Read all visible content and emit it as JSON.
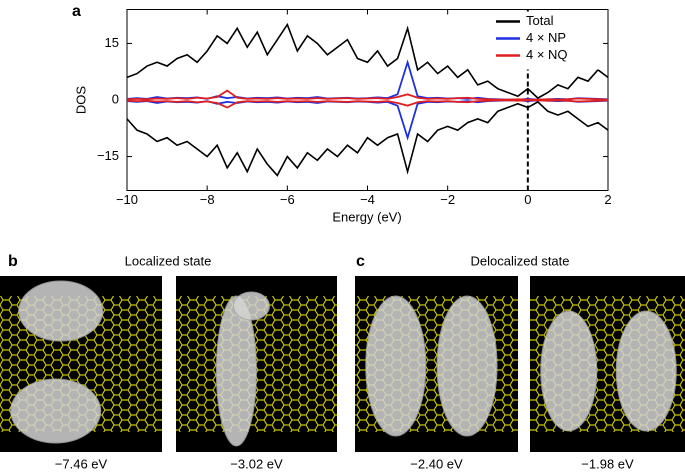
{
  "chart_data": {
    "type": "line",
    "panel_label": "a",
    "xlabel": "Energy (eV)",
    "ylabel": "DOS",
    "x": [
      -10,
      -9.75,
      -9.5,
      -9.25,
      -9,
      -8.75,
      -8.5,
      -8.25,
      -8,
      -7.75,
      -7.5,
      -7.25,
      -7,
      -6.75,
      -6.5,
      -6.25,
      -6,
      -5.75,
      -5.5,
      -5.25,
      -5,
      -4.75,
      -4.5,
      -4.25,
      -4,
      -3.75,
      -3.5,
      -3.25,
      -3,
      -2.75,
      -2.5,
      -2.25,
      -2,
      -1.75,
      -1.5,
      -1.25,
      -1,
      -0.75,
      -0.5,
      -0.25,
      0,
      0.25,
      0.5,
      0.75,
      1,
      1.25,
      1.5,
      1.75,
      2
    ],
    "series": [
      {
        "name": "Total",
        "color": "#000000",
        "values": [
          6,
          7,
          9,
          10,
          9,
          11,
          12,
          10,
          13,
          17,
          15,
          19,
          14,
          18,
          12,
          16,
          20,
          13,
          17,
          15,
          12,
          14,
          16,
          11,
          10,
          13,
          9,
          11,
          19,
          8,
          10,
          7,
          9,
          6,
          8,
          4,
          5,
          3,
          2,
          1,
          3,
          0.5,
          2,
          4,
          3,
          6,
          5,
          8,
          6
        ],
        "values_down": [
          -5,
          -8,
          -9,
          -11,
          -10,
          -12,
          -11,
          -13,
          -15,
          -12,
          -18,
          -14,
          -19,
          -13,
          -17,
          -20,
          -15,
          -18,
          -14,
          -16,
          -13,
          -15,
          -12,
          -14,
          -10,
          -12,
          -10,
          -9,
          -19,
          -9,
          -11,
          -8,
          -7,
          -8,
          -6,
          -5,
          -6,
          -3,
          -2,
          -1,
          -2,
          -0.5,
          -3,
          -4,
          -3,
          -5,
          -7,
          -6,
          -8
        ]
      },
      {
        "name": "4 × NP",
        "color": "#1f2fe0",
        "values": [
          0.3,
          0.5,
          0.3,
          0.8,
          0.4,
          0.6,
          0.5,
          0.7,
          0.3,
          1,
          0.5,
          0.8,
          0.4,
          0.6,
          0.5,
          0.7,
          0.4,
          0.6,
          0.5,
          0.8,
          0.4,
          0.5,
          0.6,
          0.4,
          0.5,
          0.7,
          0.5,
          1.5,
          10,
          1,
          0.5,
          0.6,
          0.4,
          0.5,
          0.3,
          0.6,
          0.3,
          0.2,
          0.1,
          0.1,
          0.3,
          0.1,
          0.2,
          0.3,
          0.2,
          0.5,
          0.4,
          0.3,
          0.2
        ],
        "values_down": [
          -0.3,
          -0.5,
          -0.3,
          -0.8,
          -0.4,
          -0.6,
          -0.5,
          -0.7,
          -0.3,
          -1,
          -0.5,
          -0.8,
          -0.4,
          -0.6,
          -0.5,
          -0.7,
          -0.4,
          -0.6,
          -0.5,
          -0.8,
          -0.4,
          -0.5,
          -0.6,
          -0.4,
          -0.5,
          -0.7,
          -0.5,
          -1.5,
          -10,
          -1,
          -0.5,
          -0.6,
          -0.4,
          -0.5,
          -0.3,
          -0.6,
          -0.3,
          -0.2,
          -0.1,
          -0.1,
          -0.3,
          -0.1,
          -0.2,
          -0.3,
          -0.2,
          -0.5,
          -0.4,
          -0.3,
          -0.2
        ]
      },
      {
        "name": "4 × NQ",
        "color": "#e01f1f",
        "values": [
          0.2,
          0.3,
          0.2,
          0.4,
          0.3,
          0.5,
          0.3,
          0.6,
          0.4,
          0.8,
          2.5,
          0.6,
          0.3,
          0.4,
          0.3,
          0.5,
          0.3,
          0.4,
          0.3,
          0.5,
          0.3,
          0.4,
          0.5,
          0.3,
          0.4,
          0.5,
          0.3,
          0.8,
          1.5,
          0.6,
          0.3,
          0.4,
          0.3,
          0.5,
          0.6,
          0.3,
          0.2,
          0.1,
          0.1,
          0.2,
          0.1,
          0.1,
          0.2,
          0.1,
          0.2,
          0.4,
          0.3,
          0.2,
          0.1
        ],
        "values_down": [
          -0.2,
          -0.3,
          -0.2,
          -0.4,
          -0.3,
          -0.5,
          -0.3,
          -0.6,
          -0.4,
          -0.8,
          -2,
          -0.6,
          -0.3,
          -0.4,
          -0.3,
          -0.5,
          -0.3,
          -0.4,
          -0.3,
          -0.5,
          -0.3,
          -0.4,
          -0.5,
          -0.3,
          -0.4,
          -0.5,
          -0.3,
          -0.8,
          -1.5,
          -0.6,
          -0.3,
          -0.4,
          -0.3,
          -0.5,
          -0.6,
          -0.3,
          -0.2,
          -0.1,
          -0.1,
          -0.2,
          -0.1,
          -0.1,
          -0.2,
          -0.1,
          -0.2,
          -0.4,
          -0.3,
          -0.2,
          -0.1
        ]
      }
    ],
    "xlim": [
      -10,
      2
    ],
    "ylim": [
      -24,
      24
    ],
    "xticks": [
      {
        "value": -10,
        "label": "−10"
      },
      {
        "value": -8,
        "label": "−8"
      },
      {
        "value": -6,
        "label": "−6"
      },
      {
        "value": -4,
        "label": "−4"
      },
      {
        "value": -2,
        "label": "−2"
      },
      0,
      2
    ],
    "yticks": [
      {
        "value": -15,
        "label": "−15"
      },
      0,
      15
    ],
    "vlines": [
      0
    ],
    "legend": "upper right"
  },
  "panels": [
    {
      "letter": "b",
      "title": "Localized state",
      "images": [
        {
          "caption": "−7.46 eV"
        },
        {
          "caption": "−3.02 eV"
        }
      ]
    },
    {
      "letter": "c",
      "title": "Delocalized state",
      "images": [
        {
          "caption": "−2.40 eV"
        },
        {
          "caption": "−1.98 eV"
        }
      ]
    }
  ]
}
